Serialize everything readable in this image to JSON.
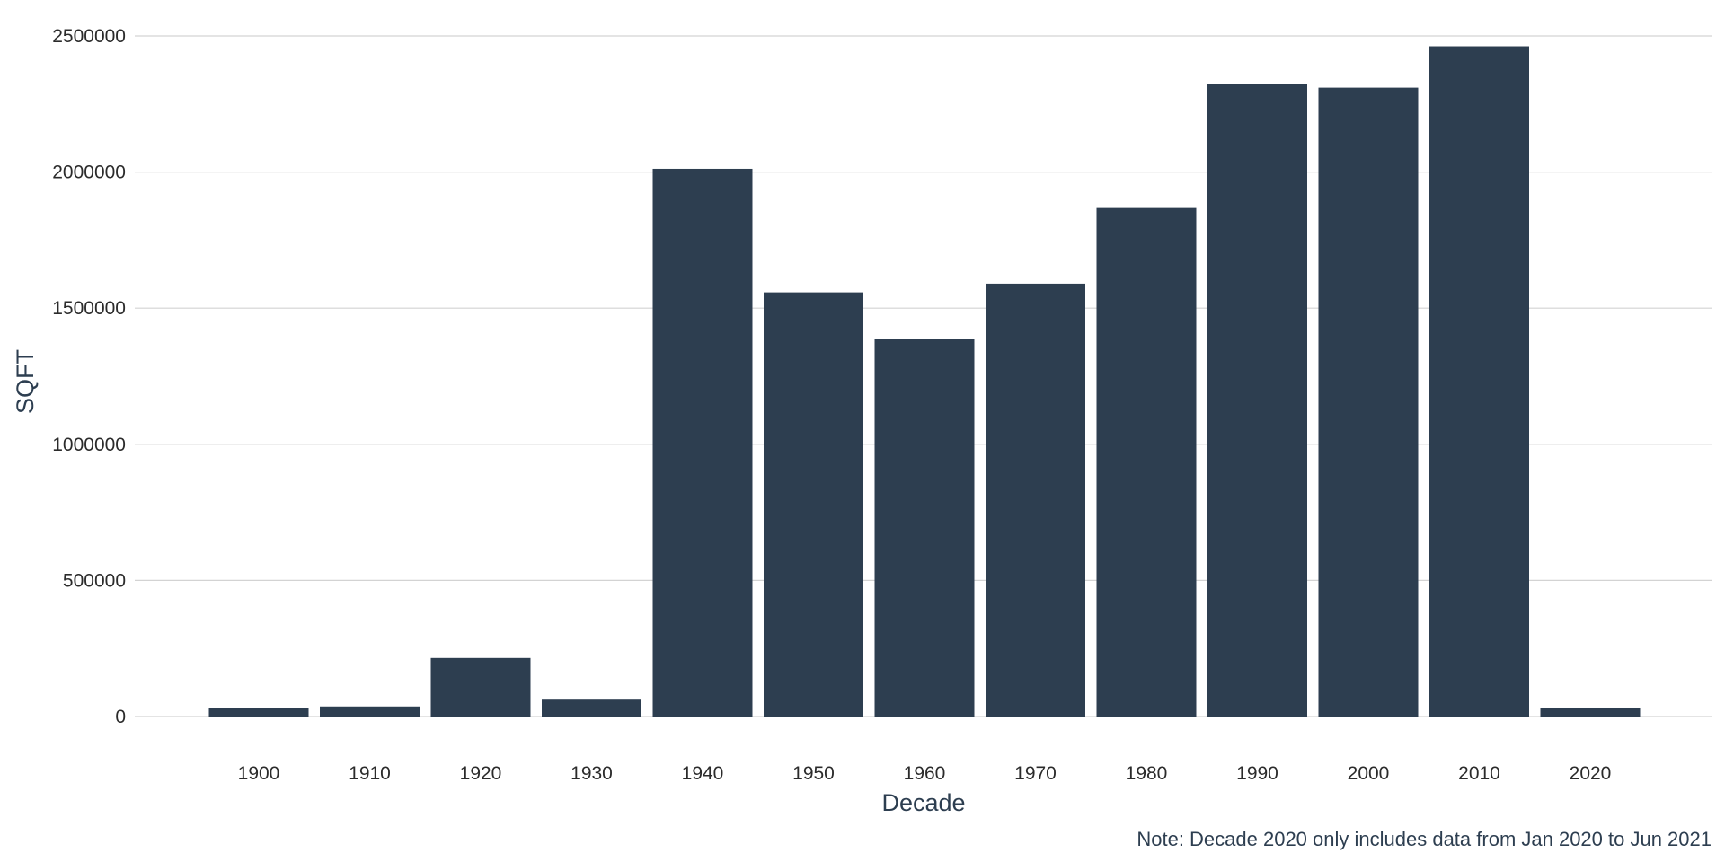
{
  "chart_data": {
    "type": "bar",
    "title": "",
    "xlabel": "Decade",
    "ylabel": "SQFT",
    "caption": "Note: Decade 2020 only includes data from Jan 2020 to Jun 2021",
    "categories": [
      "1900",
      "1910",
      "1920",
      "1930",
      "1940",
      "1950",
      "1960",
      "1970",
      "1980",
      "1990",
      "2000",
      "2010",
      "2020"
    ],
    "values": [
      30000,
      37000,
      215000,
      62000,
      2012000,
      1558000,
      1388000,
      1590000,
      1868000,
      2323000,
      2310000,
      2462000,
      33000
    ],
    "ylim": [
      0,
      2500000
    ],
    "yticks": [
      0,
      500000,
      1000000,
      1500000,
      2000000,
      2500000
    ],
    "ytick_labels": [
      "0",
      "500000",
      "1000000",
      "1500000",
      "2000000",
      "2500000"
    ],
    "grid": true,
    "legend": "none",
    "colors": {
      "bar": "#2d3e50",
      "grid": "#d3d3d3",
      "text": "#2d3e50",
      "axis_text": "#2b2b2b"
    }
  }
}
